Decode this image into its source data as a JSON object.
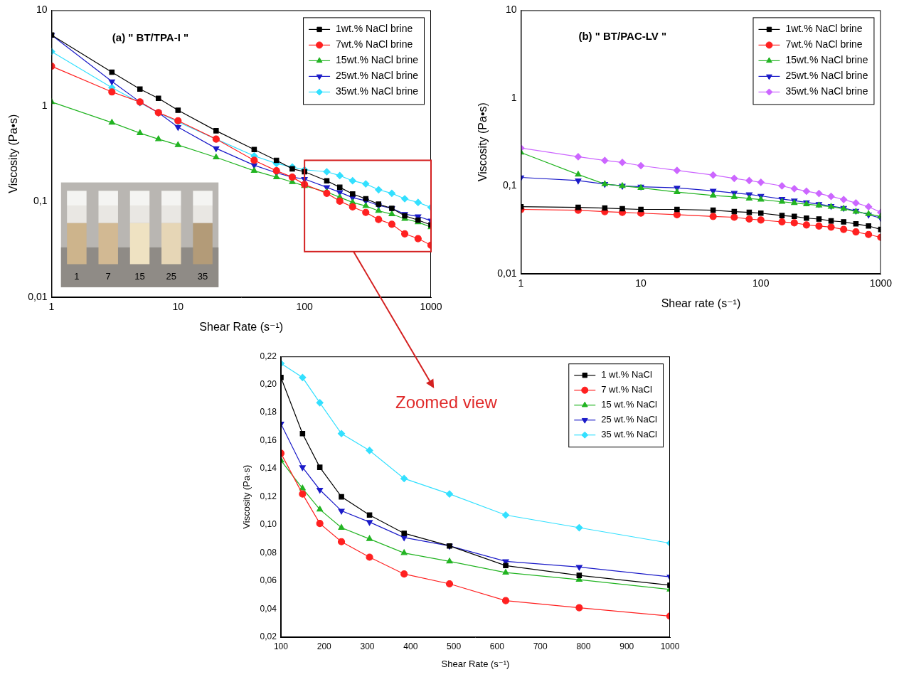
{
  "chart_data": [
    {
      "type": "line",
      "title": "(a) \" BT/TPA-I \"",
      "x_label": "Shear Rate (s⁻¹)",
      "y_label": "Viscosity (Pa•s)",
      "x": [
        1,
        3,
        5,
        7,
        10,
        20,
        40,
        60,
        80,
        100,
        150,
        190,
        240,
        305,
        385,
        490,
        620,
        790,
        1000
      ],
      "series": [
        {
          "name": "1wt.% NaCl brine",
          "color": "#000000",
          "marker": "square",
          "values": [
            5.5,
            2.25,
            1.5,
            1.2,
            0.9,
            0.55,
            0.35,
            0.27,
            0.22,
            0.205,
            0.165,
            0.141,
            0.12,
            0.107,
            0.094,
            0.085,
            0.071,
            0.064,
            0.057
          ]
        },
        {
          "name": "7wt.% NaCl brine",
          "color": "#ff2020",
          "marker": "circle",
          "values": [
            2.6,
            1.4,
            1.1,
            0.85,
            0.7,
            0.45,
            0.27,
            0.21,
            0.18,
            0.151,
            0.122,
            0.101,
            0.088,
            0.077,
            0.065,
            0.058,
            0.046,
            0.041,
            0.035
          ]
        },
        {
          "name": "15wt.% NaCl brine",
          "color": "#22b422",
          "marker": "triangle",
          "values": [
            1.1,
            0.67,
            0.52,
            0.45,
            0.39,
            0.29,
            0.21,
            0.18,
            0.16,
            0.146,
            0.126,
            0.111,
            0.098,
            0.09,
            0.08,
            0.074,
            0.066,
            0.061,
            0.054
          ]
        },
        {
          "name": "25wt.% NaCl brine",
          "color": "#1a1ac8",
          "marker": "triangle-down",
          "values": [
            5.5,
            1.8,
            1.1,
            0.85,
            0.6,
            0.36,
            0.24,
            0.2,
            0.18,
            0.172,
            0.141,
            0.125,
            0.11,
            0.102,
            0.091,
            0.085,
            0.074,
            0.07,
            0.063
          ]
        },
        {
          "name": "35wt.% NaCl brine",
          "color": "#33e0ff",
          "marker": "diamond",
          "values": [
            3.7,
            1.55,
            1.08,
            0.85,
            0.68,
            0.45,
            0.3,
            0.25,
            0.23,
            0.215,
            0.205,
            0.187,
            0.165,
            0.153,
            0.133,
            0.122,
            0.107,
            0.098,
            0.087
          ]
        }
      ],
      "xlim": [
        1,
        1000
      ],
      "ylim": [
        0.01,
        10
      ],
      "xticks": [
        1,
        10,
        100,
        1000
      ],
      "yticks": [
        {
          "value": 0.01,
          "label": "0,01"
        },
        {
          "value": 0.1,
          "label": "0,1"
        },
        1,
        10
      ],
      "log": true,
      "grid": false,
      "legend": "upper right",
      "inset_labels": [
        "1",
        "7",
        "15",
        "25",
        "35"
      ],
      "zoom_box": {
        "x": [
          100,
          1000
        ],
        "y": [
          0.03,
          0.27
        ]
      }
    },
    {
      "type": "line",
      "title": "(b) \" BT/PAC-LV \"",
      "x_label": "Shear rate (s⁻¹)",
      "y_label": "Viscosity (Pa•s)",
      "x": [
        1,
        3,
        5,
        7,
        10,
        20,
        40,
        60,
        80,
        100,
        150,
        190,
        240,
        305,
        385,
        490,
        620,
        790,
        1000
      ],
      "series": [
        {
          "name": "1wt.% NaCl brine",
          "color": "#000000",
          "marker": "square",
          "values": [
            0.058,
            0.057,
            0.056,
            0.055,
            0.054,
            0.054,
            0.053,
            0.051,
            0.05,
            0.049,
            0.046,
            0.045,
            0.043,
            0.042,
            0.04,
            0.039,
            0.037,
            0.035,
            0.032
          ]
        },
        {
          "name": "7wt.% NaCl brine",
          "color": "#ff2020",
          "marker": "circle",
          "values": [
            0.054,
            0.053,
            0.051,
            0.05,
            0.049,
            0.047,
            0.045,
            0.044,
            0.042,
            0.041,
            0.039,
            0.038,
            0.036,
            0.035,
            0.034,
            0.032,
            0.03,
            0.028,
            0.026
          ]
        },
        {
          "name": "15wt.% NaCl brine",
          "color": "#22b422",
          "marker": "triangle",
          "values": [
            0.24,
            0.135,
            0.105,
            0.1,
            0.095,
            0.085,
            0.078,
            0.075,
            0.072,
            0.07,
            0.066,
            0.064,
            0.062,
            0.06,
            0.058,
            0.055,
            0.051,
            0.048,
            0.045
          ]
        },
        {
          "name": "25wt.% NaCl brine",
          "color": "#1a1ac8",
          "marker": "triangle-down",
          "values": [
            0.125,
            0.115,
            0.105,
            0.1,
            0.098,
            0.095,
            0.088,
            0.083,
            0.08,
            0.077,
            0.071,
            0.068,
            0.065,
            0.062,
            0.059,
            0.056,
            0.052,
            0.047,
            0.043
          ]
        },
        {
          "name": "35wt.% NaCl brine",
          "color": "#cc66ff",
          "marker": "diamond",
          "values": [
            0.27,
            0.215,
            0.195,
            0.185,
            0.17,
            0.15,
            0.133,
            0.122,
            0.115,
            0.11,
            0.1,
            0.093,
            0.087,
            0.082,
            0.076,
            0.07,
            0.064,
            0.058,
            0.05
          ]
        }
      ],
      "xlim": [
        1,
        1000
      ],
      "ylim": [
        0.01,
        10
      ],
      "xticks": [
        1,
        10,
        100,
        1000
      ],
      "yticks": [
        {
          "value": 0.01,
          "label": "0,01"
        },
        {
          "value": 0.1,
          "label": "0,1"
        },
        1,
        10
      ],
      "log": true,
      "grid": false,
      "legend": "upper right"
    },
    {
      "type": "line",
      "x_label": "Shear Rate (s⁻¹)",
      "y_label": "Viscosity (Pa·s)",
      "annotations": [
        "Zoomed view"
      ],
      "x": [
        100,
        150,
        190,
        240,
        305,
        385,
        490,
        620,
        790,
        1000
      ],
      "series": [
        {
          "name": "1 wt.% NaCl",
          "color": "#000000",
          "marker": "square",
          "values": [
            0.205,
            0.165,
            0.141,
            0.12,
            0.107,
            0.094,
            0.085,
            0.071,
            0.064,
            0.057
          ]
        },
        {
          "name": "7 wt.% NaCl",
          "color": "#ff2020",
          "marker": "circle",
          "values": [
            0.151,
            0.122,
            0.101,
            0.088,
            0.077,
            0.065,
            0.058,
            0.046,
            0.041,
            0.035
          ]
        },
        {
          "name": "15 wt.% NaCl",
          "color": "#22b422",
          "marker": "triangle",
          "values": [
            0.146,
            0.126,
            0.111,
            0.098,
            0.09,
            0.08,
            0.074,
            0.066,
            0.061,
            0.054
          ]
        },
        {
          "name": "25 wt.% NaCl",
          "color": "#1a1ac8",
          "marker": "triangle-down",
          "values": [
            0.172,
            0.141,
            0.125,
            0.11,
            0.102,
            0.091,
            0.085,
            0.074,
            0.07,
            0.063
          ]
        },
        {
          "name": "35 wt.% NaCl",
          "color": "#33e0ff",
          "marker": "diamond",
          "values": [
            0.215,
            0.205,
            0.187,
            0.165,
            0.153,
            0.133,
            0.122,
            0.107,
            0.098,
            0.087
          ]
        }
      ],
      "xlim": [
        100,
        1000
      ],
      "ylim": [
        0.02,
        0.22
      ],
      "xticks": [
        100,
        200,
        300,
        400,
        500,
        600,
        700,
        800,
        900,
        1000
      ],
      "yticks": [
        {
          "value": 0.02,
          "label": "0,02"
        },
        {
          "value": 0.04,
          "label": "0,04"
        },
        {
          "value": 0.06,
          "label": "0,06"
        },
        {
          "value": 0.08,
          "label": "0,08"
        },
        {
          "value": 0.1,
          "label": "0,10"
        },
        {
          "value": 0.12,
          "label": "0,12"
        },
        {
          "value": 0.14,
          "label": "0,14"
        },
        {
          "value": 0.16,
          "label": "0,16"
        },
        {
          "value": 0.18,
          "label": "0,18"
        },
        {
          "value": 0.2,
          "label": "0,20"
        },
        {
          "value": 0.22,
          "label": "0,22"
        }
      ],
      "log": false,
      "grid": false,
      "legend": "upper right"
    }
  ]
}
